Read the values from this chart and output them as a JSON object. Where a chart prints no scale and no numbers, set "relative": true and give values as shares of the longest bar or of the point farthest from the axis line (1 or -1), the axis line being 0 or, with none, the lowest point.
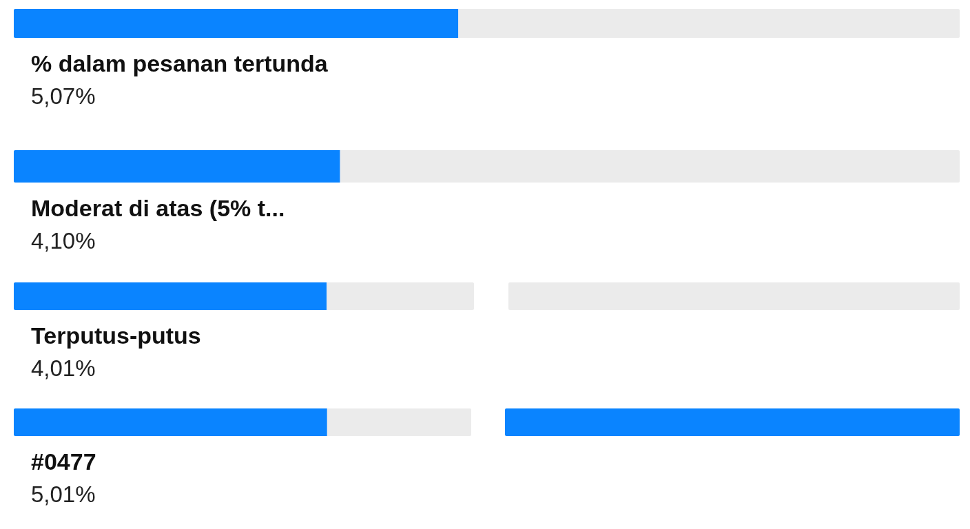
{
  "chart_data": [
    {
      "type": "bar",
      "orientation": "horizontal",
      "stacked": true,
      "relative": true,
      "title": "% dalam pesanan tertunda",
      "subtitle": "5,07%",
      "categories": [
        null
      ],
      "series": [
        {
          "color": "#0a84ff",
          "values": [
            0.47
          ]
        },
        {
          "color": "#ebebeb",
          "values": [
            0.53
          ]
        }
      ]
    },
    {
      "type": "bar",
      "orientation": "horizontal",
      "stacked": true,
      "relative": true,
      "title": "Moderat di atas (5% t...",
      "subtitle": "4,10%",
      "categories": [
        null
      ],
      "series": [
        {
          "color": "#0a84ff",
          "values": [
            0.345
          ]
        },
        {
          "color": "#ebebeb",
          "values": [
            0.655
          ]
        }
      ]
    },
    {
      "type": "bar",
      "orientation": "horizontal",
      "stacked": true,
      "relative": true,
      "title": "Terputus-putus",
      "subtitle": "4,01%",
      "categories": [
        null
      ],
      "series": [
        {
          "color": "#0a84ff",
          "values": [
            0.68
          ]
        },
        {
          "color": "#ebebeb",
          "values": [
            0.32
          ]
        }
      ]
    },
    {
      "type": "bar",
      "orientation": "horizontal",
      "stacked": true,
      "relative": true,
      "title": "#0477",
      "subtitle": "5,01%",
      "categories": [
        null
      ],
      "series": [
        {
          "color": "#0a84ff",
          "values": [
            0.685
          ]
        },
        {
          "color": "#ebebeb",
          "values": [
            0.315
          ]
        }
      ]
    }
  ]
}
